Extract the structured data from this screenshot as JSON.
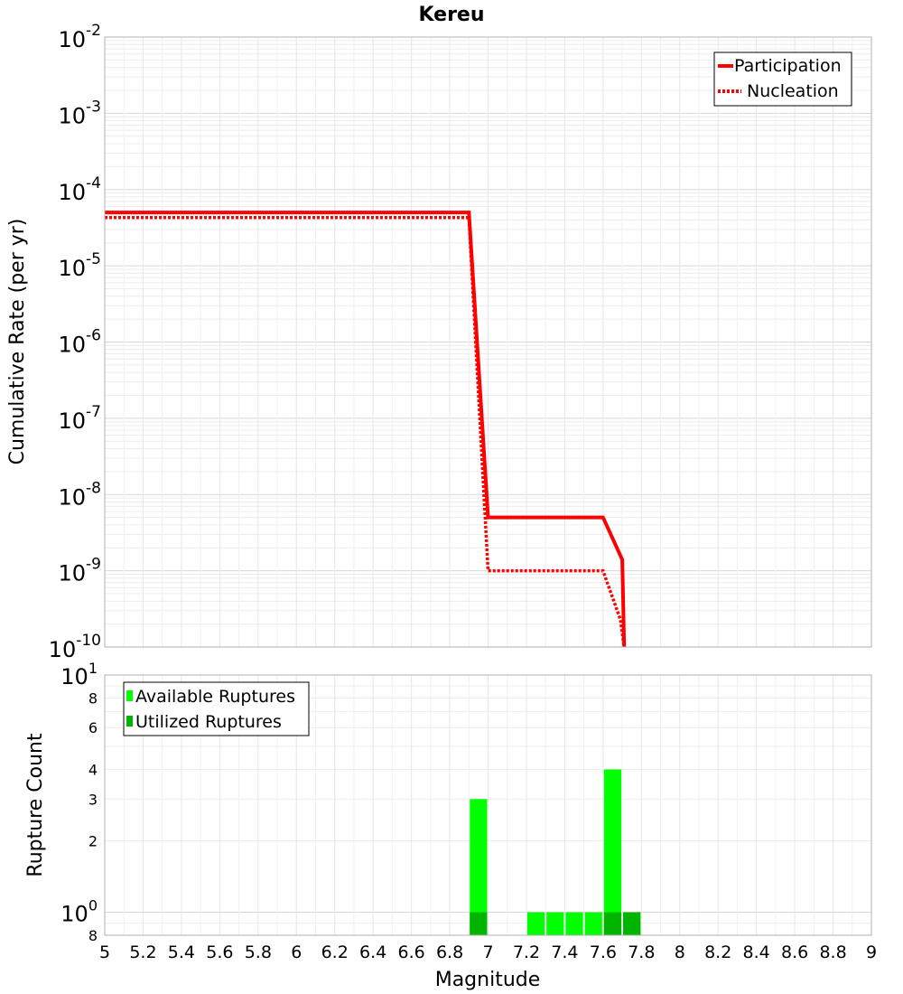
{
  "chart_data": [
    {
      "type": "line",
      "title": "Kereu",
      "xlabel": "",
      "ylabel": "Cumulative Rate (per yr)",
      "xlim": [
        5,
        9
      ],
      "ylim": [
        1e-10,
        0.01
      ],
      "y_scale": "log",
      "y_tick_labels": [
        {
          "base": "10",
          "exp": "-2"
        },
        {
          "base": "10",
          "exp": "-3"
        },
        {
          "base": "10",
          "exp": "-4"
        },
        {
          "base": "10",
          "exp": "-5"
        },
        {
          "base": "10",
          "exp": "-6"
        },
        {
          "base": "10",
          "exp": "-7"
        },
        {
          "base": "10",
          "exp": "-8"
        },
        {
          "base": "10",
          "exp": "-9"
        },
        {
          "base": "10",
          "exp": "-10"
        }
      ],
      "grid": true,
      "legend_position": "top-right",
      "series": [
        {
          "name": "Participation",
          "color": "#ff0000",
          "style": "solid",
          "x": [
            5.0,
            6.9,
            7.0,
            7.6,
            7.7,
            7.71
          ],
          "y": [
            5e-05,
            5e-05,
            5e-09,
            5e-09,
            1.4e-09,
            1e-10
          ]
        },
        {
          "name": "Nucleation",
          "color": "#ff0000",
          "style": "dotted",
          "x": [
            5.0,
            6.9,
            7.0,
            7.6,
            7.69,
            7.71
          ],
          "y": [
            4.3e-05,
            4.3e-05,
            1e-09,
            1e-09,
            2.3e-10,
            1e-10
          ]
        }
      ]
    },
    {
      "type": "bar",
      "title": "",
      "xlabel": "Magnitude",
      "ylabel": "Rupture Count",
      "xlim": [
        5,
        9
      ],
      "ylim": [
        0.8,
        10
      ],
      "y_scale": "log",
      "bin_width": 0.1,
      "x_tick_labels": [
        "5",
        "5.2",
        "5.4",
        "5.6",
        "5.8",
        "6",
        "6.2",
        "6.4",
        "6.6",
        "6.8",
        "7",
        "7.2",
        "7.4",
        "7.6",
        "7.8",
        "8",
        "8.2",
        "8.4",
        "8.6",
        "8.8",
        "9"
      ],
      "y_tick_labels": [
        {
          "value": 10,
          "base": "10",
          "exp": "1"
        },
        {
          "value": 8,
          "base": "8",
          "exp": ""
        },
        {
          "value": 6,
          "base": "6",
          "exp": ""
        },
        {
          "value": 4,
          "base": "4",
          "exp": ""
        },
        {
          "value": 3,
          "base": "3",
          "exp": ""
        },
        {
          "value": 2,
          "base": "2",
          "exp": ""
        },
        {
          "value": 1,
          "base": "10",
          "exp": "0"
        },
        {
          "value": 0.8,
          "base": "8",
          "exp": ""
        }
      ],
      "grid": true,
      "legend_position": "top-left",
      "series": [
        {
          "name": "Available Ruptures",
          "color": "#00ff00",
          "x": [
            6.95,
            7.25,
            7.35,
            7.45,
            7.55,
            7.65,
            7.75
          ],
          "values": [
            3,
            1,
            1,
            1,
            1,
            4,
            1
          ]
        },
        {
          "name": "Utilized Ruptures",
          "color": "#00b400",
          "x": [
            6.95,
            7.65,
            7.75
          ],
          "values": [
            1,
            1,
            1
          ]
        }
      ]
    }
  ]
}
